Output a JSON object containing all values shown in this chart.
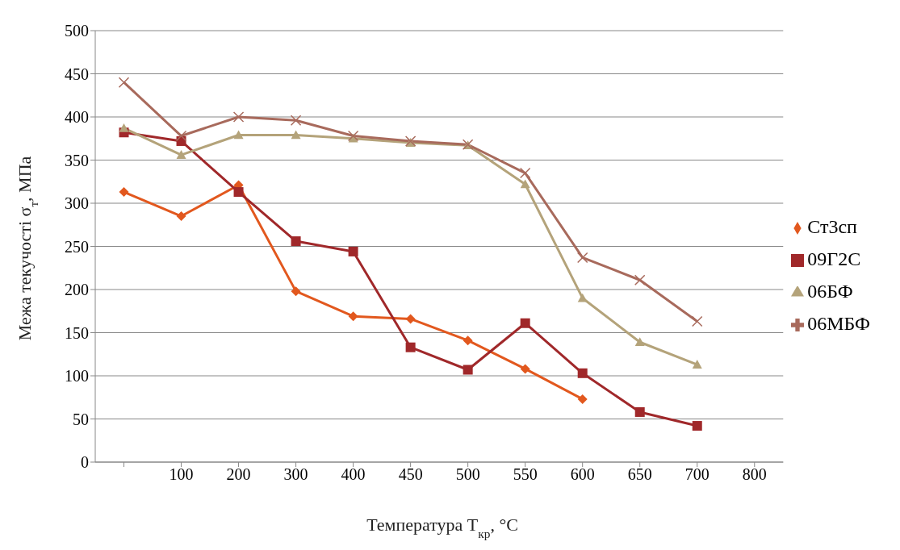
{
  "chart_data": {
    "type": "line",
    "xlabel": "Температура T$_{кр}$, °C",
    "ylabel": "Межа текучості σ$_{т}$, МПа",
    "categories": [
      null,
      "100",
      "200",
      "300",
      "400",
      "450",
      "500",
      "550",
      "600",
      "650",
      "700",
      "800"
    ],
    "series": [
      {
        "name": "Ст3сп",
        "color": "#e2581e",
        "marker": "diamond",
        "values": [
          313,
          285,
          321,
          198,
          169,
          166,
          141,
          108,
          73,
          null,
          null,
          null
        ]
      },
      {
        "name": "09Г2С",
        "color": "#a0282a",
        "marker": "square",
        "values": [
          382,
          372,
          313,
          256,
          244,
          133,
          107,
          161,
          103,
          58,
          42,
          null
        ]
      },
      {
        "name": "06БФ",
        "color": "#b4a37a",
        "marker": "triangle",
        "values": [
          387,
          356,
          379,
          379,
          375,
          370,
          367,
          322,
          190,
          139,
          113,
          null
        ]
      },
      {
        "name": "06МБФ",
        "color": "#a86a5c",
        "marker": "cross",
        "values": [
          440,
          378,
          400,
          396,
          378,
          372,
          368,
          335,
          237,
          211,
          163,
          null
        ]
      }
    ],
    "ylim": [
      0,
      500
    ],
    "yticks": [
      0,
      50,
      100,
      150,
      200,
      250,
      300,
      350,
      400,
      450,
      500
    ],
    "grid": "y",
    "legend": "right",
    "line_style": "solid"
  }
}
